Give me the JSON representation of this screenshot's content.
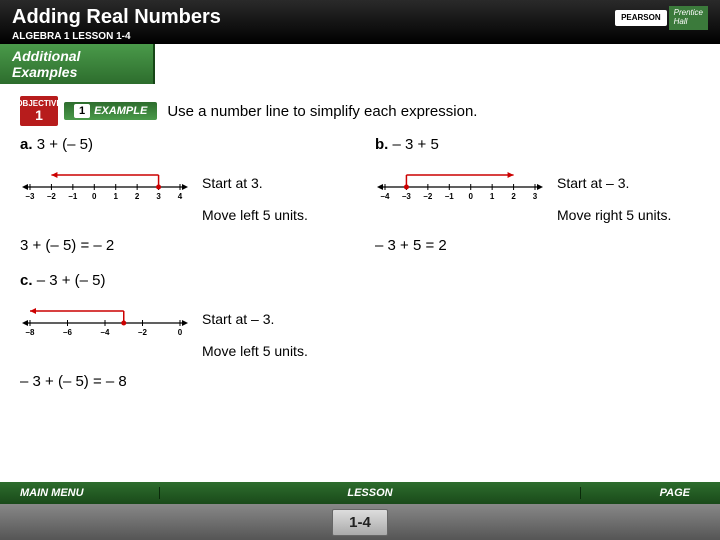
{
  "header": {
    "title": "Adding Real Numbers",
    "subtitle": "ALGEBRA 1  LESSON 1-4",
    "pearson": "PEARSON",
    "prentice1": "Prentice",
    "prentice2": "Hall"
  },
  "addex": "Additional Examples",
  "objective": {
    "label": "OBJECTIVE",
    "num": "1"
  },
  "example": {
    "num": "1",
    "label": "EXAMPLE"
  },
  "instruction": "Use a number line to simplify each expression.",
  "a": {
    "label": "a.",
    "expr": "3 + (– 5)",
    "step1": "Start at 3.",
    "step2": "Move left 5 units.",
    "answer": "3 + (– 5) = – 2",
    "ticks": [
      -3,
      -2,
      -1,
      0,
      1,
      2,
      3,
      4
    ],
    "start": 3,
    "end": -2,
    "colors": {
      "axis": "#000",
      "arrow": "#c00",
      "dot": "#c00"
    }
  },
  "b": {
    "label": "b.",
    "expr": "– 3 + 5",
    "step1": "Start at – 3.",
    "step2": "Move right 5 units.",
    "answer": "– 3 + 5 = 2",
    "ticks": [
      -4,
      -3,
      -2,
      -1,
      0,
      1,
      2,
      3
    ],
    "start": -3,
    "end": 2,
    "colors": {
      "axis": "#000",
      "arrow": "#c00",
      "dot": "#c00"
    }
  },
  "c": {
    "label": "c.",
    "expr": "– 3 + (– 5)",
    "step1": "Start at – 3.",
    "step2": "Move left 5 units.",
    "answer": "– 3 + (– 5) = – 8",
    "ticks": [
      -8,
      -6,
      -4,
      -2,
      0
    ],
    "start": -3,
    "end": -8,
    "colors": {
      "axis": "#000",
      "arrow": "#c00",
      "dot": "#c00"
    }
  },
  "footer": {
    "main": "MAIN MENU",
    "lesson": "LESSON",
    "page": "PAGE",
    "pagenum": "1-4"
  }
}
